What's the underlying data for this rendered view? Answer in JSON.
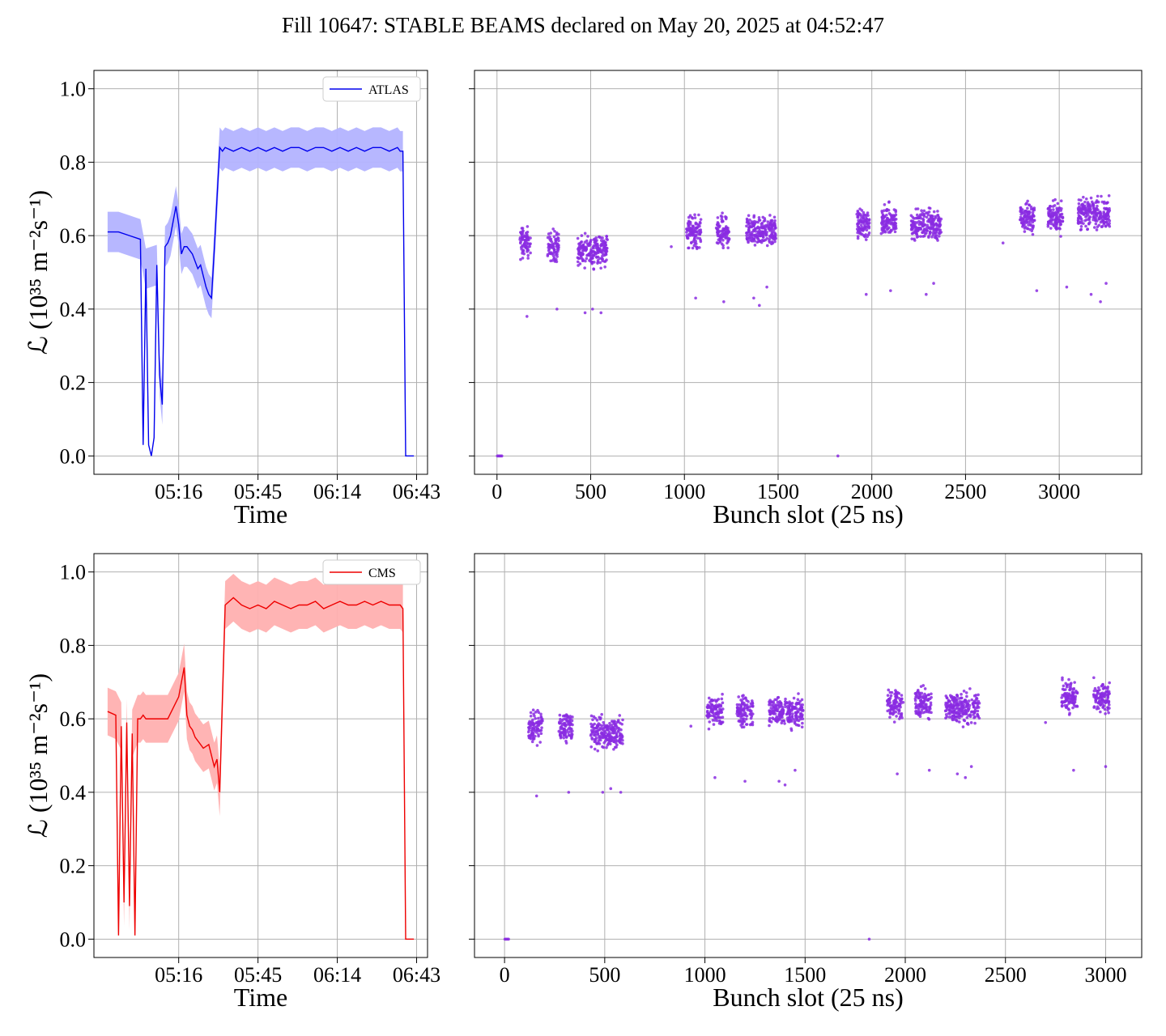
{
  "figure": {
    "title": "Fill 10647: STABLE BEAMS declared on May 20, 2025 at 04:52:47"
  },
  "colors": {
    "atlas": "#0000ee",
    "atlas_band": "#b3b3ff",
    "cms": "#ee0000",
    "cms_band": "#ffb0b0",
    "scatter": "#8a2be2",
    "grid": "#b0b0b0"
  },
  "chart_data": [
    {
      "id": "atlas_time",
      "type": "line",
      "legend": "ATLAS",
      "legend_position": "top-right",
      "grid": true,
      "xlabel": "Time",
      "ylabel": "ℒ (10³⁵ m⁻²s⁻¹)",
      "x_tick_labels": [
        "05:16",
        "05:45",
        "06:14",
        "06:43"
      ],
      "x_ticks_minutes": [
        316,
        345,
        374,
        403
      ],
      "xlim_minutes": [
        285,
        407
      ],
      "ylim": [
        -0.05,
        1.05
      ],
      "y_ticks": [
        "0.0",
        "0.2",
        "0.4",
        "0.6",
        "0.8",
        "1.0"
      ],
      "y_tick_values": [
        0,
        0.2,
        0.4,
        0.6,
        0.8,
        1.0
      ],
      "x_minutes": [
        290,
        294,
        298,
        302,
        303,
        304,
        305,
        306,
        307,
        308,
        309,
        310,
        311,
        312,
        313,
        314,
        315,
        316,
        317,
        318,
        319,
        320,
        321,
        322,
        323,
        324,
        325,
        326,
        327,
        328,
        329,
        330,
        331,
        332,
        333,
        336,
        339,
        342,
        345,
        348,
        351,
        354,
        357,
        360,
        363,
        366,
        369,
        372,
        375,
        378,
        381,
        384,
        387,
        390,
        393,
        396,
        397,
        398,
        399,
        400,
        401,
        402
      ],
      "y": [
        0.61,
        0.61,
        0.6,
        0.59,
        0.03,
        0.51,
        0.03,
        0.0,
        0.05,
        0.52,
        0.22,
        0.14,
        0.57,
        0.58,
        0.6,
        0.64,
        0.68,
        0.63,
        0.55,
        0.57,
        0.57,
        0.56,
        0.55,
        0.53,
        0.51,
        0.52,
        0.49,
        0.46,
        0.44,
        0.43,
        0.56,
        0.7,
        0.84,
        0.83,
        0.84,
        0.83,
        0.84,
        0.83,
        0.84,
        0.83,
        0.84,
        0.83,
        0.84,
        0.84,
        0.83,
        0.84,
        0.84,
        0.83,
        0.84,
        0.83,
        0.84,
        0.83,
        0.84,
        0.84,
        0.83,
        0.84,
        0.83,
        0.83,
        0.0,
        0.0,
        0.0,
        0.0
      ],
      "band_halfwidth": 0.055
    },
    {
      "id": "atlas_bunch",
      "type": "scatter",
      "grid": true,
      "xlabel": "Bunch slot (25 ns)",
      "xlim": [
        -120,
        3440
      ],
      "x_ticks": [
        0,
        500,
        1000,
        1500,
        2000,
        2500,
        3000
      ],
      "ylim": [
        -0.05,
        1.05
      ],
      "y_tick_values": [
        0,
        0.2,
        0.4,
        0.6,
        0.8,
        1.0
      ],
      "zero_points": [
        [
          2,
          0
        ],
        [
          8,
          0
        ],
        [
          14,
          0
        ],
        [
          20,
          0
        ],
        [
          26,
          0
        ],
        [
          1819,
          0
        ]
      ],
      "trains": [
        {
          "start": 120,
          "end": 180,
          "center": 0.58,
          "spread": 0.06
        },
        {
          "start": 270,
          "end": 330,
          "center": 0.57,
          "spread": 0.06
        },
        {
          "start": 430,
          "end": 590,
          "center": 0.56,
          "spread": 0.06
        },
        {
          "start": 1010,
          "end": 1090,
          "center": 0.61,
          "spread": 0.06
        },
        {
          "start": 1170,
          "end": 1240,
          "center": 0.61,
          "spread": 0.06
        },
        {
          "start": 1330,
          "end": 1490,
          "center": 0.61,
          "spread": 0.06
        },
        {
          "start": 1920,
          "end": 1990,
          "center": 0.63,
          "spread": 0.06
        },
        {
          "start": 2050,
          "end": 2130,
          "center": 0.64,
          "spread": 0.06
        },
        {
          "start": 2210,
          "end": 2370,
          "center": 0.63,
          "spread": 0.06
        },
        {
          "start": 2790,
          "end": 2870,
          "center": 0.65,
          "spread": 0.06
        },
        {
          "start": 2940,
          "end": 3020,
          "center": 0.65,
          "spread": 0.06
        },
        {
          "start": 3100,
          "end": 3270,
          "center": 0.66,
          "spread": 0.06
        }
      ],
      "outliers": [
        [
          160,
          0.38
        ],
        [
          320,
          0.4
        ],
        [
          470,
          0.39
        ],
        [
          510,
          0.4
        ],
        [
          555,
          0.39
        ],
        [
          930,
          0.57
        ],
        [
          1060,
          0.43
        ],
        [
          1210,
          0.42
        ],
        [
          1370,
          0.43
        ],
        [
          1400,
          0.41
        ],
        [
          1440,
          0.46
        ],
        [
          1970,
          0.44
        ],
        [
          2100,
          0.45
        ],
        [
          2290,
          0.44
        ],
        [
          2330,
          0.47
        ],
        [
          2700,
          0.58
        ],
        [
          2880,
          0.45
        ],
        [
          3040,
          0.46
        ],
        [
          3170,
          0.44
        ],
        [
          3220,
          0.42
        ],
        [
          3250,
          0.47
        ]
      ]
    },
    {
      "id": "cms_time",
      "type": "line",
      "legend": "CMS",
      "legend_position": "top-right",
      "grid": true,
      "xlabel": "Time",
      "ylabel": "ℒ (10³⁵ m⁻²s⁻¹)",
      "x_tick_labels": [
        "05:16",
        "05:45",
        "06:14",
        "06:43"
      ],
      "x_ticks_minutes": [
        316,
        345,
        374,
        403
      ],
      "xlim_minutes": [
        285,
        407
      ],
      "ylim": [
        -0.05,
        1.05
      ],
      "y_ticks": [
        "0.0",
        "0.2",
        "0.4",
        "0.6",
        "0.8",
        "1.0"
      ],
      "y_tick_values": [
        0,
        0.2,
        0.4,
        0.6,
        0.8,
        1.0
      ],
      "x_minutes": [
        290,
        293,
        294,
        295,
        296,
        297,
        298,
        299,
        300,
        301,
        302,
        303,
        304,
        305,
        306,
        309,
        312,
        314,
        316,
        318,
        319,
        320,
        321,
        322,
        323,
        325,
        327,
        329,
        330,
        331,
        333,
        336,
        339,
        342,
        345,
        348,
        351,
        354,
        357,
        360,
        363,
        366,
        369,
        372,
        375,
        378,
        381,
        384,
        387,
        390,
        393,
        396,
        397,
        398,
        399,
        400,
        401,
        402
      ],
      "y": [
        0.62,
        0.61,
        0.01,
        0.58,
        0.1,
        0.59,
        0.09,
        0.56,
        0.01,
        0.6,
        0.6,
        0.61,
        0.6,
        0.6,
        0.6,
        0.6,
        0.6,
        0.63,
        0.66,
        0.74,
        0.61,
        0.58,
        0.57,
        0.55,
        0.54,
        0.52,
        0.53,
        0.47,
        0.49,
        0.4,
        0.91,
        0.93,
        0.91,
        0.9,
        0.91,
        0.9,
        0.92,
        0.91,
        0.9,
        0.91,
        0.91,
        0.92,
        0.9,
        0.91,
        0.92,
        0.91,
        0.91,
        0.92,
        0.91,
        0.92,
        0.91,
        0.91,
        0.91,
        0.9,
        0.0,
        0.0,
        0.0,
        0.0
      ],
      "band_halfwidth": 0.065
    },
    {
      "id": "cms_bunch",
      "type": "scatter",
      "grid": true,
      "xlabel": "Bunch slot (25 ns)",
      "xlim": [
        -150,
        3180
      ],
      "x_ticks": [
        0,
        500,
        1000,
        1500,
        2000,
        2500,
        3000
      ],
      "ylim": [
        -0.05,
        1.05
      ],
      "y_tick_values": [
        0,
        0.2,
        0.4,
        0.6,
        0.8,
        1.0
      ],
      "zero_points": [
        [
          2,
          0
        ],
        [
          8,
          0
        ],
        [
          14,
          0
        ],
        [
          20,
          0
        ],
        [
          1820,
          0
        ]
      ],
      "trains": [
        {
          "start": 120,
          "end": 190,
          "center": 0.58,
          "spread": 0.06
        },
        {
          "start": 270,
          "end": 340,
          "center": 0.58,
          "spread": 0.06
        },
        {
          "start": 430,
          "end": 590,
          "center": 0.56,
          "spread": 0.06
        },
        {
          "start": 1010,
          "end": 1090,
          "center": 0.62,
          "spread": 0.06
        },
        {
          "start": 1160,
          "end": 1240,
          "center": 0.62,
          "spread": 0.06
        },
        {
          "start": 1320,
          "end": 1490,
          "center": 0.62,
          "spread": 0.06
        },
        {
          "start": 1910,
          "end": 1990,
          "center": 0.64,
          "spread": 0.06
        },
        {
          "start": 2050,
          "end": 2130,
          "center": 0.64,
          "spread": 0.06
        },
        {
          "start": 2200,
          "end": 2370,
          "center": 0.63,
          "spread": 0.06
        },
        {
          "start": 2780,
          "end": 2860,
          "center": 0.66,
          "spread": 0.06
        },
        {
          "start": 2940,
          "end": 3020,
          "center": 0.66,
          "spread": 0.06
        }
      ],
      "outliers": [
        [
          160,
          0.39
        ],
        [
          320,
          0.4
        ],
        [
          490,
          0.4
        ],
        [
          530,
          0.41
        ],
        [
          580,
          0.4
        ],
        [
          930,
          0.58
        ],
        [
          1050,
          0.44
        ],
        [
          1200,
          0.43
        ],
        [
          1370,
          0.43
        ],
        [
          1400,
          0.42
        ],
        [
          1450,
          0.46
        ],
        [
          1960,
          0.45
        ],
        [
          2120,
          0.46
        ],
        [
          2260,
          0.45
        ],
        [
          2300,
          0.44
        ],
        [
          2330,
          0.47
        ],
        [
          2700,
          0.59
        ],
        [
          2840,
          0.46
        ],
        [
          3000,
          0.47
        ]
      ]
    }
  ]
}
